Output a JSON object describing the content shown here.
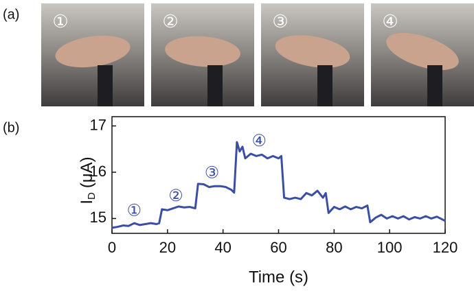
{
  "figure": {
    "panel_a_label": "(a)",
    "panel_b_label": "(b)",
    "photo_labels": [
      "①",
      "②",
      "③",
      "④"
    ]
  },
  "chart_data": {
    "type": "line",
    "ylabel": [
      "I",
      "D",
      "(μA)"
    ],
    "xlabel": "Time (s)",
    "x": [
      0,
      2,
      4,
      6,
      8,
      10,
      12,
      14,
      16,
      17,
      18,
      20,
      22,
      24,
      26,
      28,
      30,
      31,
      33,
      35,
      37,
      39,
      41,
      43,
      44,
      45,
      46,
      47,
      48,
      50,
      52,
      54,
      56,
      58,
      60,
      61,
      62,
      64,
      66,
      68,
      70,
      72,
      74,
      76,
      77,
      78,
      80,
      82,
      84,
      86,
      88,
      90,
      92,
      93,
      95,
      97,
      99,
      101,
      103,
      105,
      107,
      109,
      111,
      113,
      115,
      117,
      119,
      120
    ],
    "series": [
      {
        "color": "#3a4ea3",
        "values": [
          14.8,
          14.82,
          14.85,
          14.84,
          14.9,
          14.86,
          14.88,
          14.9,
          14.88,
          14.9,
          15.2,
          15.18,
          15.22,
          15.26,
          15.24,
          15.25,
          15.22,
          15.75,
          15.74,
          15.68,
          15.7,
          15.7,
          15.68,
          15.62,
          15.56,
          16.65,
          16.45,
          16.55,
          16.3,
          16.4,
          16.35,
          16.38,
          16.3,
          16.35,
          16.3,
          16.35,
          15.45,
          15.42,
          15.45,
          15.42,
          15.55,
          15.5,
          15.6,
          15.45,
          15.55,
          15.12,
          15.25,
          15.2,
          15.26,
          15.2,
          15.25,
          15.22,
          15.28,
          14.92,
          15.02,
          15.08,
          15.0,
          15.05,
          15.0,
          15.05,
          14.98,
          15.03,
          15.0,
          15.05,
          15.0,
          15.04,
          14.98,
          14.95
        ]
      }
    ],
    "annotations": [
      "①",
      "②",
      "③",
      "④"
    ],
    "xlim": [
      0,
      120
    ],
    "xticks": [
      0,
      20,
      40,
      60,
      80,
      100,
      120
    ],
    "ylim": [
      14.68,
      17.2
    ],
    "yticks": [
      15,
      16,
      17
    ]
  }
}
